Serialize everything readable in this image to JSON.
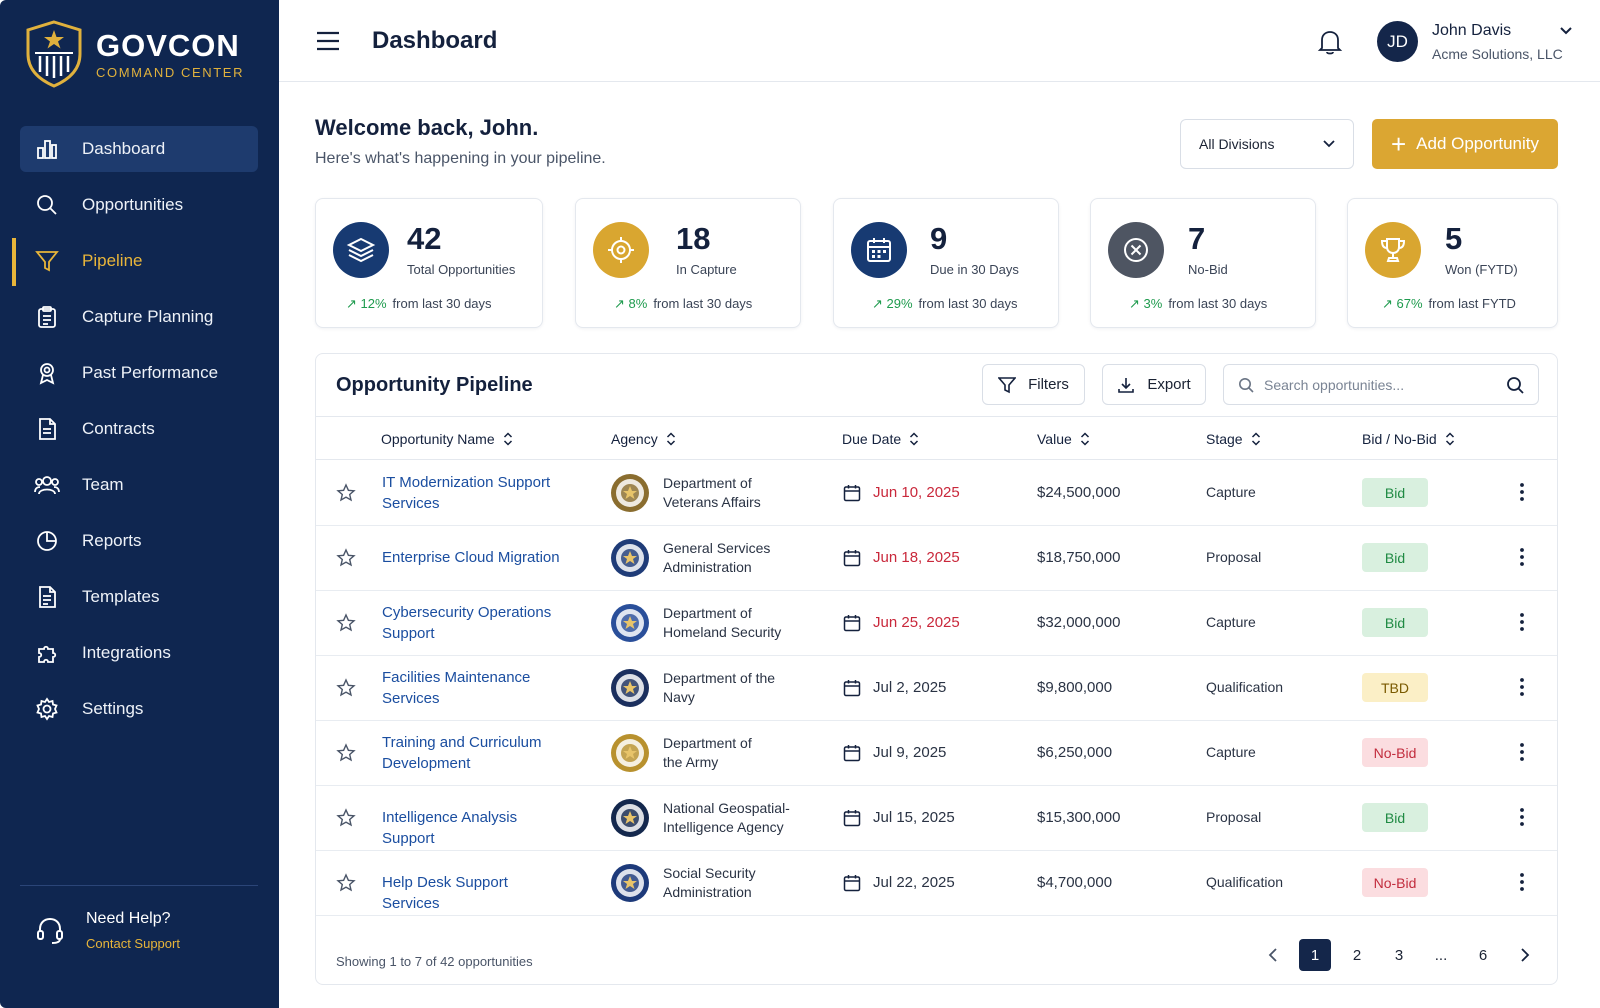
{
  "brand": {
    "name": "GOVCON",
    "tagline": "COMMAND CENTER"
  },
  "sidebar": {
    "items": [
      {
        "label": "Dashboard",
        "icon": "bar-chart-icon"
      },
      {
        "label": "Opportunities",
        "icon": "search-icon"
      },
      {
        "label": "Pipeline",
        "icon": "funnel-icon"
      },
      {
        "label": "Capture Planning",
        "icon": "clipboard-icon"
      },
      {
        "label": "Past Performance",
        "icon": "award-ribbon-icon"
      },
      {
        "label": "Contracts",
        "icon": "document-icon"
      },
      {
        "label": "Team",
        "icon": "users-icon"
      },
      {
        "label": "Reports",
        "icon": "pie-chart-icon"
      },
      {
        "label": "Templates",
        "icon": "template-document-icon"
      },
      {
        "label": "Integrations",
        "icon": "puzzle-icon"
      },
      {
        "label": "Settings",
        "icon": "gear-icon"
      }
    ],
    "help": {
      "title": "Need Help?",
      "link": "Contact Support",
      "icon": "headset-icon"
    }
  },
  "header": {
    "title": "Dashboard",
    "user": {
      "initials": "JD",
      "name": "John Davis",
      "org": "Acme Solutions, LLC"
    }
  },
  "welcome": {
    "title": "Welcome back, John.",
    "subtitle": "Here's what's happening in your pipeline.",
    "division_select": "All Divisions",
    "add_button": "Add Opportunity"
  },
  "stats": [
    {
      "value": "42",
      "label": "Total Opportunities",
      "change": "12%",
      "period": "from last 30 days",
      "icon": "layers-icon",
      "color": "#173a72"
    },
    {
      "value": "18",
      "label": "In Capture",
      "change": "8%",
      "period": "from last 30 days",
      "icon": "crosshair-icon",
      "color": "#d9a630"
    },
    {
      "value": "9",
      "label": "Due in 30 Days",
      "change": "29%",
      "period": "from last 30 days",
      "icon": "calendar-icon",
      "color": "#173a72"
    },
    {
      "value": "7",
      "label": "No-Bid",
      "change": "3%",
      "period": "from last 30 days",
      "icon": "x-circle-icon",
      "color": "#4e5562"
    },
    {
      "value": "5",
      "label": "Won (FYTD)",
      "change": "67%",
      "period": "from last FYTD",
      "icon": "trophy-icon",
      "color": "#d9a630"
    }
  ],
  "table": {
    "title": "Opportunity Pipeline",
    "filters_label": "Filters",
    "export_label": "Export",
    "search_placeholder": "Search opportunities...",
    "columns": [
      "Opportunity Name",
      "Agency",
      "Due Date",
      "Value",
      "Stage",
      "Bid / No-Bid"
    ],
    "rows": [
      {
        "name": "IT Modernization Support Services",
        "agency": "Department of Veterans Affairs",
        "due": "Jun 10, 2025",
        "late": true,
        "value": "$24,500,000",
        "stage": "Capture",
        "bid": "Bid",
        "seal": "#8a6d2f"
      },
      {
        "name": "Enterprise Cloud Migration",
        "agency": "General Services Administration",
        "due": "Jun 18, 2025",
        "late": true,
        "value": "$18,750,000",
        "stage": "Proposal",
        "bid": "Bid",
        "seal": "#1f3c78"
      },
      {
        "name": "Cybersecurity Operations Support",
        "agency": "Department of Homeland Security",
        "due": "Jun 25, 2025",
        "late": true,
        "value": "$32,000,000",
        "stage": "Capture",
        "bid": "Bid",
        "seal": "#2a4f9a"
      },
      {
        "name": "Facilities Maintenance Services",
        "agency": "Department of the Navy",
        "due": "Jul 2, 2025",
        "late": false,
        "value": "$9,800,000",
        "stage": "Qualification",
        "bid": "TBD",
        "seal": "#1b2f5e"
      },
      {
        "name": "Training and Curriculum Development",
        "agency": "Department of the Army",
        "due": "Jul 9, 2025",
        "late": false,
        "value": "$6,250,000",
        "stage": "Capture",
        "bid": "No-Bid",
        "seal": "#b8912e"
      },
      {
        "name": "Intelligence Analysis Support",
        "agency": "National Geospatial-Intelligence Agency",
        "due": "Jul 15, 2025",
        "late": false,
        "value": "$15,300,000",
        "stage": "Proposal",
        "bid": "Bid",
        "seal": "#14284d"
      },
      {
        "name": "Help Desk Support Services",
        "agency": "Social Security Administration",
        "due": "Jul 22, 2025",
        "late": false,
        "value": "$4,700,000",
        "stage": "Qualification",
        "bid": "No-Bid",
        "seal": "#1d3a7a"
      }
    ],
    "showing": "Showing 1 to 7 of 42 opportunities",
    "pages": [
      "1",
      "2",
      "3",
      "...",
      "6"
    ]
  }
}
